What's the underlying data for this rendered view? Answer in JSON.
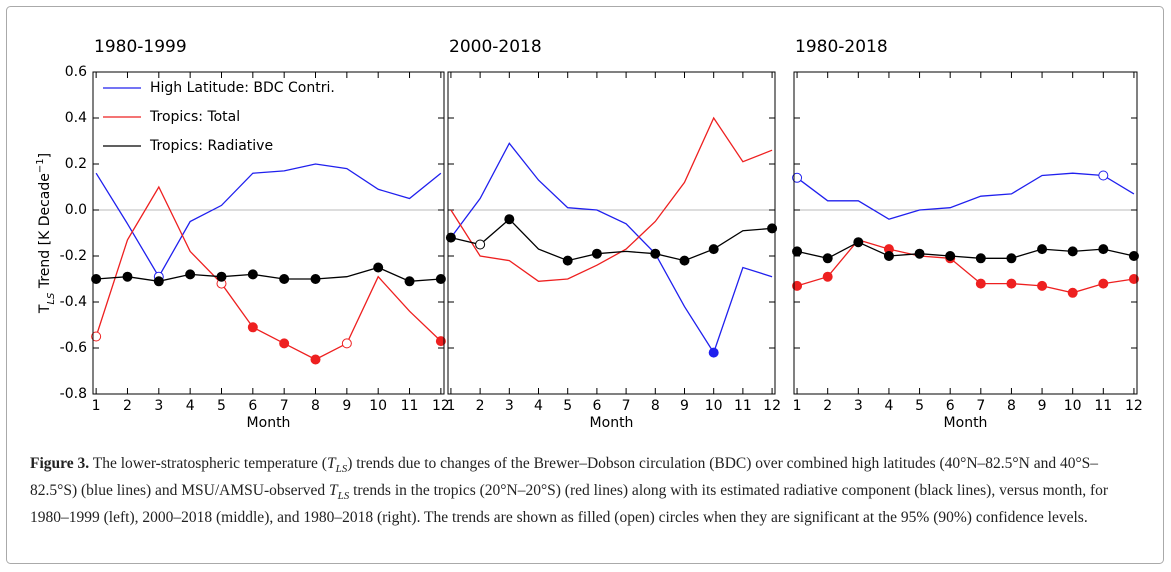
{
  "chart_data": [
    {
      "type": "line",
      "title": "1980-1999",
      "xlabel": "Month",
      "ylabel": [
        {
          "text": "T"
        },
        {
          "text": "LS",
          "style": "sub"
        },
        {
          "text": " Trend [K Decade"
        },
        {
          "text": "−1",
          "style": "sup"
        },
        {
          "text": "]"
        }
      ],
      "x": [
        1,
        2,
        3,
        4,
        5,
        6,
        7,
        8,
        9,
        10,
        11,
        12
      ],
      "xlim": [
        0.9,
        12.1
      ],
      "xticks": [
        1,
        2,
        3,
        4,
        5,
        6,
        7,
        8,
        9,
        10,
        11,
        12
      ],
      "ylim": [
        -0.8,
        0.6
      ],
      "yticks": [
        -0.8,
        -0.6,
        -0.4,
        -0.2,
        0.0,
        0.2,
        0.4,
        0.6
      ],
      "ytick_labels": true,
      "zero_line": true,
      "legend": "upper left",
      "series": [
        {
          "name": "High Latitude: BDC Contri.",
          "color": "#2020ee",
          "values": [
            0.16,
            -0.06,
            -0.29,
            -0.05,
            0.02,
            0.16,
            0.17,
            0.2,
            0.18,
            0.09,
            0.05,
            0.16
          ],
          "markers": [
            null,
            null,
            "open",
            null,
            null,
            null,
            null,
            null,
            null,
            null,
            null,
            null
          ]
        },
        {
          "name": "Tropics: Total",
          "color": "#ee2020",
          "values": [
            -0.55,
            -0.13,
            0.1,
            -0.18,
            -0.32,
            -0.51,
            -0.58,
            -0.65,
            -0.58,
            -0.29,
            -0.44,
            -0.57
          ],
          "markers": [
            "open",
            null,
            null,
            null,
            "open",
            "filled",
            "filled",
            "filled",
            "open",
            null,
            null,
            "filled"
          ]
        },
        {
          "name": "Tropics: Radiative",
          "color": "#000000",
          "values": [
            -0.3,
            -0.29,
            -0.31,
            -0.28,
            -0.29,
            -0.28,
            -0.3,
            -0.3,
            -0.29,
            -0.25,
            -0.31,
            -0.3
          ],
          "markers": [
            "filled",
            "filled",
            "filled",
            "filled",
            "filled",
            "filled",
            "filled",
            "filled",
            null,
            "filled",
            "filled",
            "filled"
          ]
        }
      ]
    },
    {
      "type": "line",
      "title": "2000-2018",
      "xlabel": "Month",
      "x": [
        1,
        2,
        3,
        4,
        5,
        6,
        7,
        8,
        9,
        10,
        11,
        12
      ],
      "xlim": [
        0.9,
        12.1
      ],
      "xticks": [
        1,
        2,
        3,
        4,
        5,
        6,
        7,
        8,
        9,
        10,
        11,
        12
      ],
      "ylim": [
        -0.8,
        0.6
      ],
      "yticks": [
        -0.8,
        -0.6,
        -0.4,
        -0.2,
        0.0,
        0.2,
        0.4,
        0.6
      ],
      "ytick_labels": false,
      "zero_line": true,
      "series": [
        {
          "color": "#2020ee",
          "values": [
            -0.12,
            0.05,
            0.29,
            0.13,
            0.01,
            0.0,
            -0.06,
            -0.19,
            -0.42,
            -0.62,
            -0.25,
            -0.29
          ],
          "markers": [
            null,
            null,
            null,
            null,
            null,
            null,
            null,
            null,
            null,
            "filled",
            null,
            null
          ]
        },
        {
          "color": "#ee2020",
          "values": [
            0.0,
            -0.2,
            -0.22,
            -0.31,
            -0.3,
            -0.24,
            -0.17,
            -0.05,
            0.12,
            0.4,
            0.21,
            0.26
          ],
          "markers": [
            null,
            null,
            null,
            null,
            null,
            null,
            null,
            null,
            null,
            null,
            null,
            null
          ]
        },
        {
          "color": "#000000",
          "values": [
            -0.12,
            -0.15,
            -0.04,
            -0.17,
            -0.22,
            -0.19,
            -0.18,
            -0.19,
            -0.22,
            -0.17,
            -0.09,
            -0.08
          ],
          "markers": [
            "filled",
            "open",
            "filled",
            null,
            "filled",
            "filled",
            null,
            "filled",
            "filled",
            "filled",
            null,
            "filled"
          ]
        }
      ]
    },
    {
      "type": "line",
      "title": "1980-2018",
      "xlabel": "Month",
      "x": [
        1,
        2,
        3,
        4,
        5,
        6,
        7,
        8,
        9,
        10,
        11,
        12
      ],
      "xlim": [
        0.9,
        12.1
      ],
      "xticks": [
        1,
        2,
        3,
        4,
        5,
        6,
        7,
        8,
        9,
        10,
        11,
        12
      ],
      "ylim": [
        -0.8,
        0.6
      ],
      "yticks": [
        -0.8,
        -0.6,
        -0.4,
        -0.2,
        0.0,
        0.2,
        0.4,
        0.6
      ],
      "ytick_labels": false,
      "zero_line": true,
      "series": [
        {
          "color": "#2020ee",
          "values": [
            0.14,
            0.04,
            0.04,
            -0.04,
            0.0,
            0.01,
            0.06,
            0.07,
            0.15,
            0.16,
            0.15,
            0.07
          ],
          "markers": [
            "open",
            null,
            null,
            null,
            null,
            null,
            null,
            null,
            null,
            null,
            "open",
            null
          ]
        },
        {
          "color": "#ee2020",
          "values": [
            -0.33,
            -0.29,
            -0.13,
            -0.17,
            -0.2,
            -0.21,
            -0.32,
            -0.32,
            -0.33,
            -0.36,
            -0.32,
            -0.3
          ],
          "markers": [
            "filled",
            "filled",
            null,
            "filled",
            null,
            "filled",
            "filled",
            "filled",
            "filled",
            "filled",
            "filled",
            "filled"
          ]
        },
        {
          "color": "#000000",
          "values": [
            -0.18,
            -0.21,
            -0.14,
            -0.2,
            -0.19,
            -0.2,
            -0.21,
            -0.21,
            -0.17,
            -0.18,
            -0.17,
            -0.2
          ],
          "markers": [
            "filled",
            "filled",
            "filled",
            "filled",
            "filled",
            "filled",
            "filled",
            "filled",
            "filled",
            "filled",
            "filled",
            "filled"
          ]
        }
      ]
    }
  ],
  "caption": [
    {
      "text": "Figure 3.",
      "style": "bold"
    },
    {
      "text": " The lower-stratospheric temperature ("
    },
    {
      "text": "T",
      "style": "italic"
    },
    {
      "text": "LS",
      "style": "sub"
    },
    {
      "text": ") trends due to changes of the Brewer–Dobson circulation (BDC) over combined high latitudes (40°N–82.5°N and 40°S–82.5°S) (blue lines) and MSU/AMSU-observed "
    },
    {
      "text": "T",
      "style": "italic"
    },
    {
      "text": "LS",
      "style": "sub"
    },
    {
      "text": " trends in the tropics (20°N–20°S) (red lines) along with its estimated radiative component (black lines), versus month, for 1980–1999 (left), 2000–2018 (middle), and 1980–2018 (right). The trends are shown as filled (open) circles when they are significant at the 95% (90%) confidence levels."
    }
  ]
}
